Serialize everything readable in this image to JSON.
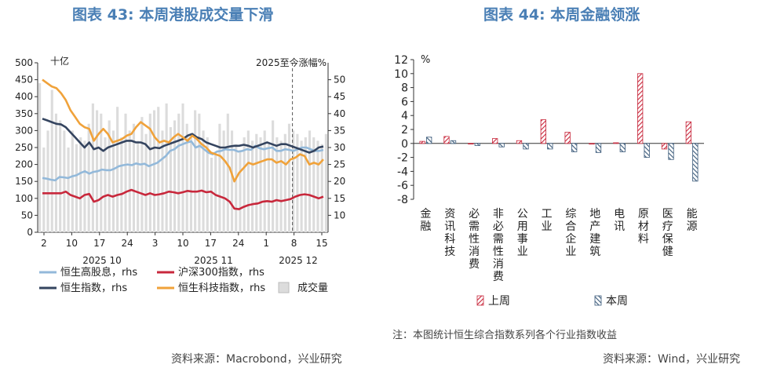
{
  "titles": {
    "left": "图表 43: 本周港股成交量下滑",
    "right": "图表 44: 本周金融领涨"
  },
  "sources": {
    "left": "资料来源：Macrobond，兴业研究",
    "right": "资料来源：Wind，兴业研究"
  },
  "note": "注：本图统计恒生综合指数系列各个行业指数收益",
  "chart_data": [
    {
      "type": "line",
      "title": "图表 43: 本周港股成交量下滑",
      "unit_left": "十亿",
      "annotation": "2025至今涨幅%",
      "x_tick_labels": [
        "2",
        "10",
        "17",
        "24",
        "3",
        "10",
        "17",
        "24",
        "1",
        "8",
        "15"
      ],
      "month_labels": [
        "2025 10",
        "2025 11",
        "2025 12"
      ],
      "yleft": {
        "min": 0,
        "max": 500,
        "ticks": [
          0,
          50,
          100,
          150,
          200,
          250,
          300,
          350,
          400,
          450,
          500
        ]
      },
      "yright": {
        "min": 5,
        "max": 55,
        "ticks": [
          10,
          15,
          20,
          25,
          30,
          35,
          40,
          45,
          50
        ]
      },
      "legend": [
        {
          "name": "恒生高股息，rhs",
          "color": "#93b9da",
          "kind": "line"
        },
        {
          "name": "沪深300指数，rhs",
          "color": "#c8283c",
          "kind": "line"
        },
        {
          "name": "恒生指数，rhs",
          "color": "#34445f",
          "kind": "line"
        },
        {
          "name": "恒生科技指数，rhs",
          "color": "#f0a23a",
          "kind": "line"
        },
        {
          "name": "成交量",
          "color": "#dcdcdc",
          "kind": "bar"
        }
      ],
      "volume": [
        440,
        250,
        300,
        420,
        350,
        330,
        300,
        250,
        300,
        260,
        280,
        270,
        320,
        380,
        360,
        350,
        280,
        330,
        300,
        370,
        280,
        350,
        300,
        320,
        270,
        340,
        290,
        350,
        360,
        370,
        300,
        380,
        310,
        330,
        350,
        380,
        320,
        280,
        360,
        350,
        300,
        280,
        220,
        230,
        320,
        300,
        350,
        300,
        260,
        240,
        280,
        300,
        270,
        290,
        280,
        300,
        260,
        330,
        280,
        270,
        290,
        320,
        300,
        290,
        270,
        280,
        300,
        280,
        270,
        260,
        290
      ],
      "series": [
        {
          "name": "恒生高股息，rhs",
          "color": "#93b9da",
          "values": [
            21.0,
            20.8,
            20.5,
            20.3,
            21.3,
            21.2,
            21.0,
            21.5,
            21.8,
            22.5,
            23.0,
            22.3,
            22.8,
            23.0,
            23.5,
            23.3,
            23.3,
            23.8,
            24.5,
            24.8,
            25.0,
            24.8,
            25.3,
            25.0,
            25.2,
            24.5,
            25.0,
            25.5,
            26.5,
            27.5,
            29.0,
            29.5,
            30.5,
            31.0,
            31.5,
            31.8,
            30.0,
            30.5,
            29.5,
            28.5,
            28.0,
            28.8,
            29.0,
            29.5,
            29.3,
            29.3,
            28.8,
            29.0,
            29.5,
            29.3,
            30.5,
            29.8,
            29.5,
            29.8,
            30.0,
            29.0,
            29.0,
            29.5,
            29.3,
            29.0,
            29.5,
            30.0,
            30.0,
            29.5,
            29.0,
            29.0,
            29.3
          ]
        },
        {
          "name": "沪深300指数，rhs",
          "color": "#c8283c",
          "values": [
            16.5,
            16.5,
            16.5,
            16.5,
            16.5,
            17.0,
            16.0,
            15.5,
            15.0,
            16.0,
            16.3,
            14.0,
            14.5,
            15.5,
            16.0,
            15.5,
            16.0,
            16.3,
            17.0,
            17.5,
            17.0,
            16.5,
            16.0,
            16.5,
            16.0,
            16.2,
            16.5,
            17.0,
            16.8,
            16.5,
            16.8,
            17.2,
            17.0,
            17.0,
            17.3,
            16.8,
            17.0,
            16.0,
            15.5,
            15.0,
            14.0,
            12.0,
            11.8,
            12.5,
            13.0,
            13.3,
            13.5,
            14.0,
            14.2,
            14.0,
            14.5,
            14.2,
            14.5,
            14.8,
            15.5,
            16.0,
            16.2,
            16.0,
            15.5,
            15.0,
            15.5
          ]
        },
        {
          "name": "恒生指数，rhs",
          "color": "#34445f",
          "values": [
            38.5,
            38.0,
            37.5,
            37.0,
            36.8,
            36.0,
            34.5,
            33.0,
            31.5,
            30.0,
            31.5,
            29.5,
            30.0,
            29.0,
            30.0,
            30.5,
            31.0,
            31.5,
            32.0,
            32.0,
            31.5,
            31.5,
            31.0,
            29.5,
            30.0,
            29.8,
            30.5,
            31.0,
            31.5,
            32.0,
            32.5,
            33.5,
            34.0,
            33.0,
            32.5,
            31.5,
            31.0,
            30.5,
            30.0,
            30.0,
            30.3,
            30.5,
            30.5,
            30.8,
            30.5,
            30.0,
            30.5,
            31.0,
            31.5,
            31.0,
            30.5,
            31.0,
            31.0,
            30.5,
            30.0,
            29.5,
            29.0,
            28.5,
            29.0,
            30.0,
            30.3
          ]
        },
        {
          "name": "恒生科技指数，rhs",
          "color": "#f0a23a",
          "values": [
            50.0,
            49.0,
            48.0,
            47.5,
            46.0,
            44.0,
            41.0,
            39.0,
            37.0,
            36.0,
            35.5,
            32.0,
            34.0,
            35.5,
            34.0,
            31.5,
            32.0,
            32.5,
            33.5,
            34.0,
            36.0,
            37.5,
            36.5,
            35.5,
            33.0,
            31.5,
            32.0,
            31.5,
            33.0,
            34.0,
            33.0,
            32.0,
            33.5,
            32.5,
            31.0,
            30.0,
            28.5,
            28.0,
            27.5,
            26.0,
            24.0,
            20.0,
            22.5,
            24.0,
            25.5,
            25.0,
            25.5,
            26.0,
            26.5,
            26.5,
            25.5,
            26.0,
            25.0,
            26.5,
            27.0,
            28.0,
            27.5,
            25.0,
            25.5,
            25.0,
            26.5
          ]
        }
      ]
    },
    {
      "type": "bar",
      "title": "图表 44: 本周金融领涨",
      "unit": "%",
      "ylim": [
        -8,
        12
      ],
      "yticks": [
        12,
        10,
        8,
        6,
        4,
        2,
        0,
        -2,
        -4,
        -6,
        -8
      ],
      "categories": [
        "金融",
        "资讯科技",
        "必需性消费",
        "非必需性消费",
        "公用事业",
        "工业",
        "综合企业",
        "地产建筑",
        "电讯",
        "原材料",
        "医疗保健",
        "能源"
      ],
      "series": [
        {
          "name": "上周",
          "color": "#c8283c",
          "pattern": "hatch-right",
          "values": [
            0.3,
            1.0,
            0.0,
            0.7,
            0.4,
            3.4,
            1.6,
            -0.1,
            0.1,
            10.0,
            -0.8,
            3.1
          ]
        },
        {
          "name": "本周",
          "color": "#3b5a7a",
          "pattern": "hatch-left",
          "values": [
            0.9,
            0.4,
            -0.3,
            -0.5,
            -0.8,
            -0.8,
            -1.2,
            -1.3,
            -1.2,
            -2.0,
            -2.3,
            -5.4
          ]
        }
      ]
    }
  ]
}
